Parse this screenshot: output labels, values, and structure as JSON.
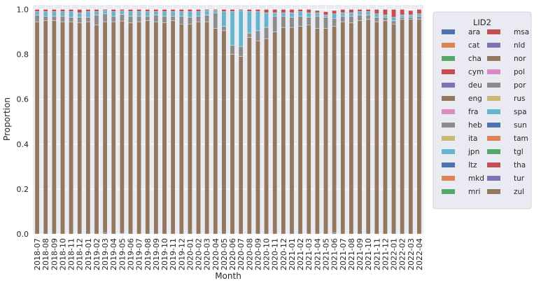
{
  "chart_data": {
    "type": "bar",
    "stacked": true,
    "xlabel": "Month",
    "ylabel": "Proportion",
    "ylim": [
      0,
      1.02
    ],
    "yticks": [
      0.0,
      0.2,
      0.4,
      0.6,
      0.8,
      1.0
    ],
    "grid": true,
    "legend_title": "LID2",
    "legend_placement": "right",
    "categories": [
      "2018-07",
      "2018-08",
      "2018-09",
      "2018-10",
      "2018-11",
      "2018-12",
      "2019-01",
      "2019-02",
      "2019-03",
      "2019-04",
      "2019-05",
      "2019-06",
      "2019-07",
      "2019-08",
      "2019-09",
      "2019-10",
      "2019-11",
      "2019-12",
      "2020-01",
      "2020-02",
      "2020-03",
      "2020-04",
      "2020-05",
      "2020-06",
      "2020-07",
      "2020-08",
      "2020-09",
      "2020-10",
      "2020-11",
      "2020-12",
      "2021-01",
      "2021-02",
      "2021-03",
      "2021-04",
      "2021-05",
      "2021-06",
      "2021-07",
      "2021-08",
      "2021-09",
      "2021-10",
      "2021-11",
      "2021-12",
      "2022-01",
      "2022-02",
      "2022-03",
      "2022-04"
    ],
    "legend": [
      {
        "label": "ara",
        "color": "#4c72b0"
      },
      {
        "label": "cat",
        "color": "#dd8452"
      },
      {
        "label": "cha",
        "color": "#55a868"
      },
      {
        "label": "cym",
        "color": "#c44e52"
      },
      {
        "label": "deu",
        "color": "#8172b3"
      },
      {
        "label": "eng",
        "color": "#937860"
      },
      {
        "label": "fra",
        "color": "#da8bc3"
      },
      {
        "label": "heb",
        "color": "#8c8c8c"
      },
      {
        "label": "ita",
        "color": "#ccb974"
      },
      {
        "label": "jpn",
        "color": "#64b5cd"
      },
      {
        "label": "ltz",
        "color": "#4c72b0"
      },
      {
        "label": "mkd",
        "color": "#dd8452"
      },
      {
        "label": "mri",
        "color": "#55a868"
      },
      {
        "label": "msa",
        "color": "#c44e52"
      },
      {
        "label": "nld",
        "color": "#8172b3"
      },
      {
        "label": "nor",
        "color": "#937860"
      },
      {
        "label": "pol",
        "color": "#da8bc3"
      },
      {
        "label": "por",
        "color": "#8c8c8c"
      },
      {
        "label": "rus",
        "color": "#ccb974"
      },
      {
        "label": "spa",
        "color": "#64b5cd"
      },
      {
        "label": "sun",
        "color": "#4c72b0"
      },
      {
        "label": "tam",
        "color": "#dd8452"
      },
      {
        "label": "tgl",
        "color": "#55a868"
      },
      {
        "label": "tha",
        "color": "#c44e52"
      },
      {
        "label": "tur",
        "color": "#8172b3"
      },
      {
        "label": "zul",
        "color": "#937860"
      }
    ],
    "series": [
      {
        "name": "ara",
        "values": [
          0,
          0,
          0,
          0,
          0,
          0,
          0,
          0,
          0.005,
          0,
          0.003,
          0,
          0,
          0,
          0,
          0,
          0,
          0,
          0,
          0,
          0,
          0,
          0,
          0,
          0,
          0,
          0,
          0,
          0,
          0,
          0,
          0,
          0,
          0,
          0,
          0.005,
          0,
          0,
          0,
          0,
          0,
          0,
          0,
          0,
          0,
          0
        ]
      },
      {
        "name": "eng",
        "values": [
          0.945,
          0.95,
          0.95,
          0.945,
          0.945,
          0.94,
          0.945,
          0.93,
          0.94,
          0.945,
          0.945,
          0.94,
          0.945,
          0.95,
          0.945,
          0.94,
          0.95,
          0.935,
          0.935,
          0.945,
          0.945,
          0.915,
          0.905,
          0.8,
          0.79,
          0.875,
          0.86,
          0.87,
          0.9,
          0.92,
          0.92,
          0.925,
          0.93,
          0.915,
          0.915,
          0.92,
          0.945,
          0.94,
          0.95,
          0.955,
          0.945,
          0.95,
          0.935,
          0.955,
          0.955,
          0.955
        ]
      },
      {
        "name": "heb",
        "values": [
          0.03,
          0.02,
          0.02,
          0.025,
          0.02,
          0.025,
          0.02,
          0.045,
          0.035,
          0.025,
          0.03,
          0.03,
          0.025,
          0.02,
          0.03,
          0.03,
          0.02,
          0.035,
          0.03,
          0.025,
          0.03,
          0.07,
          0.02,
          0.04,
          0.045,
          0.02,
          0.045,
          0.05,
          0.07,
          0.05,
          0.045,
          0.045,
          0.035,
          0.055,
          0.05,
          0.035,
          0.025,
          0.03,
          0.025,
          0.02,
          0.02,
          0.015,
          0.015,
          0.01,
          0.01,
          0.015
        ]
      },
      {
        "name": "spa",
        "values": [
          0.015,
          0.02,
          0.02,
          0.02,
          0.025,
          0.02,
          0.025,
          0.015,
          0.015,
          0.02,
          0.015,
          0.02,
          0.02,
          0.02,
          0.015,
          0.02,
          0.02,
          0.02,
          0.025,
          0.02,
          0.02,
          0.01,
          0.065,
          0.15,
          0.16,
          0.095,
          0.085,
          0.065,
          0.015,
          0.015,
          0.02,
          0.02,
          0.02,
          0.015,
          0.01,
          0.02,
          0.015,
          0.015,
          0.015,
          0.015,
          0.015,
          0.01,
          0.015,
          0.01,
          0.01,
          0.01
        ]
      },
      {
        "name": "cym",
        "values": [
          0.01,
          0.01,
          0.01,
          0.01,
          0.01,
          0.015,
          0.01,
          0.01,
          0.005,
          0.01,
          0.007,
          0.01,
          0.01,
          0.01,
          0.01,
          0.01,
          0.01,
          0.01,
          0.01,
          0.01,
          0.005,
          0.005,
          0.01,
          0.01,
          0.005,
          0.01,
          0.01,
          0.015,
          0.015,
          0.015,
          0.015,
          0.01,
          0.015,
          0.01,
          0.015,
          0.015,
          0.015,
          0.015,
          0.01,
          0.01,
          0.02,
          0.025,
          0.035,
          0.025,
          0.02,
          0.02
        ]
      }
    ]
  }
}
